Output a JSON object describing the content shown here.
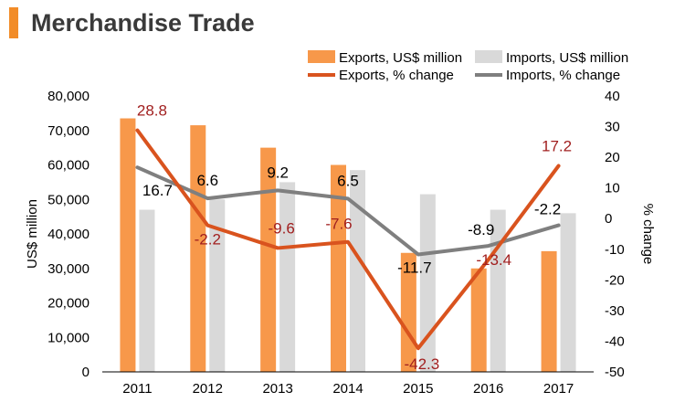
{
  "header": {
    "title": "Merchandise Trade"
  },
  "colors": {
    "title_marker": "#F28C28",
    "exports_bar": "#F7984A",
    "imports_bar": "#D9D9D9",
    "exports_line": "#D9531E",
    "imports_line": "#7F7F7F",
    "exports_label": "#A11F1F",
    "imports_label": "#000000"
  },
  "chart_data": {
    "type": "bar",
    "categories": [
      "2011",
      "2012",
      "2013",
      "2014",
      "2015",
      "2016",
      "2017"
    ],
    "series": [
      {
        "name": "Exports, US$ million",
        "kind": "bar",
        "axis": "left",
        "values": [
          73500,
          71500,
          65000,
          60000,
          34500,
          30000,
          35000
        ]
      },
      {
        "name": "Imports, US$ million",
        "kind": "bar",
        "axis": "left",
        "values": [
          47000,
          50000,
          55000,
          58500,
          51500,
          47000,
          46000
        ]
      },
      {
        "name": "Exports, % change",
        "kind": "line",
        "axis": "right",
        "values": [
          28.8,
          -2.2,
          -9.6,
          -7.6,
          -42.3,
          -13.4,
          17.2
        ]
      },
      {
        "name": "Imports, % change",
        "kind": "line",
        "axis": "right",
        "values": [
          16.7,
          6.6,
          9.2,
          6.5,
          -11.7,
          -8.9,
          -2.2
        ]
      }
    ],
    "ylabel": "US$ million",
    "y2label": "% change",
    "ylim": [
      0,
      80000
    ],
    "y2lim": [
      -50,
      40
    ],
    "yticks": [
      "0",
      "10,000",
      "20,000",
      "30,000",
      "40,000",
      "50,000",
      "60,000",
      "70,000",
      "80,000"
    ],
    "y2ticks": [
      "-50",
      "-40",
      "-30",
      "-20",
      "-10",
      "0",
      "10",
      "20",
      "30",
      "40"
    ],
    "exports_change_labels": [
      "28.8",
      "-2.2",
      "-9.6",
      "-7.6",
      "-42.3",
      "-13.4",
      "17.2"
    ],
    "imports_change_labels": [
      "16.7",
      "6.6",
      "9.2",
      "6.5",
      "-11.7",
      "-8.9",
      "-2.2"
    ],
    "grid": false,
    "legend_position": "top-right"
  }
}
